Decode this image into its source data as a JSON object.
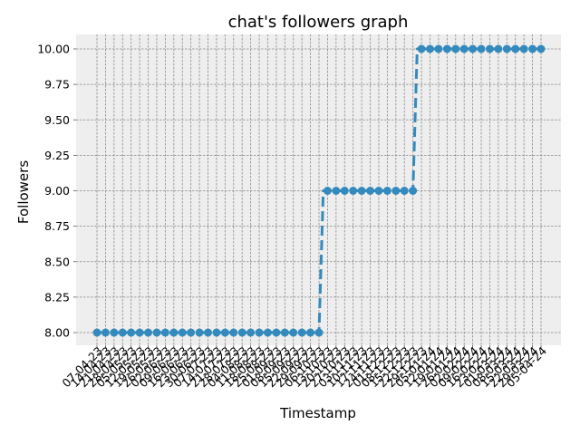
{
  "chart_data": {
    "type": "line",
    "title": "chat's followers graph",
    "xlabel": "Timestamp",
    "ylabel": "Followers",
    "ylim": [
      7.9,
      10.1
    ],
    "yticks": [
      "8.00",
      "8.25",
      "8.50",
      "8.75",
      "9.00",
      "9.25",
      "9.50",
      "9.75",
      "10.00"
    ],
    "ytick_values": [
      8.0,
      8.25,
      8.5,
      8.75,
      9.0,
      9.25,
      9.5,
      9.75,
      10.0
    ],
    "grid": true,
    "line_color": "#348ABD",
    "background": "#EEEEEE",
    "x": [
      "07-04-23",
      "10-04-23",
      "14-04-23",
      "17-04-23",
      "21-04-23",
      "24-04-23",
      "28-04-23",
      "01-05-23",
      "05-05-23",
      "08-05-23",
      "12-05-23",
      "15-05-23",
      "19-05-23",
      "22-05-23",
      "26-05-23",
      "29-05-23",
      "02-06-23",
      "05-06-23",
      "09-06-23",
      "12-06-23",
      "16-06-23",
      "19-06-23",
      "23-06-23",
      "26-06-23",
      "30-06-23",
      "03-07-23",
      "07-07-23",
      "10-07-23",
      "14-07-23",
      "17-07-23",
      "21-07-23",
      "24-07-23",
      "28-07-23",
      "31-07-23",
      "04-08-23",
      "07-08-23",
      "11-08-23",
      "14-08-23",
      "18-08-23",
      "21-08-23",
      "25-08-23",
      "28-08-23",
      "01-09-23",
      "04-09-23",
      "08-09-23",
      "11-09-23",
      "15-09-23",
      "18-09-23",
      "22-09-23",
      "25-09-23",
      "29-09-23",
      "02-10-23",
      "06-10-23",
      "09-10-23",
      "13-10-23",
      "16-10-23",
      "20-10-23",
      "23-10-23",
      "27-10-23",
      "30-10-23",
      "03-11-23",
      "06-11-23",
      "10-11-23",
      "13-11-23",
      "17-11-23",
      "20-11-23",
      "24-11-23",
      "27-11-23",
      "01-12-23",
      "04-12-23",
      "08-12-23",
      "11-12-23",
      "15-12-23",
      "18-12-23",
      "22-12-23",
      "25-12-23",
      "29-12-23",
      "01-01-24",
      "05-01-24",
      "08-01-24",
      "12-01-24",
      "15-01-24",
      "19-01-24",
      "22-01-24",
      "26-01-24",
      "29-01-24",
      "02-02-24",
      "05-02-24",
      "09-02-24",
      "12-02-24",
      "16-02-24",
      "19-02-24",
      "23-02-24",
      "26-02-24",
      "01-03-24",
      "04-03-24",
      "08-03-24",
      "11-03-24",
      "15-03-24",
      "18-03-24",
      "22-03-24",
      "25-03-24",
      "29-03-24",
      "01-04-24",
      "05-04-24"
    ],
    "series": [
      {
        "values": [
          8,
          8,
          8,
          8,
          8,
          8,
          8,
          8,
          8,
          8,
          8,
          8,
          8,
          8,
          8,
          8,
          8,
          8,
          8,
          8,
          8,
          8,
          8,
          8,
          8,
          8,
          8,
          8,
          8,
          8,
          8,
          8,
          8,
          8,
          8,
          8,
          8,
          8,
          8,
          8,
          8,
          8,
          8,
          8,
          8,
          8,
          8,
          8,
          8,
          8,
          8,
          8,
          8,
          9,
          9,
          9,
          9,
          9,
          9,
          9,
          9,
          9,
          9,
          9,
          9,
          9,
          9,
          9,
          9,
          9,
          9,
          9,
          9,
          9,
          9,
          10,
          10,
          10,
          10,
          10,
          10,
          10,
          10,
          10,
          10,
          10,
          10,
          10,
          10,
          10,
          10,
          10,
          10,
          10,
          10,
          10,
          10,
          10,
          10,
          10,
          10,
          10,
          10,
          10,
          10
        ]
      }
    ],
    "markers_at": [
      0,
      2,
      4,
      6,
      8,
      10,
      12,
      14,
      16,
      18,
      20,
      22,
      24,
      26,
      28,
      30,
      32,
      34,
      36,
      38,
      40,
      42,
      44,
      46,
      48,
      50,
      52,
      54,
      56,
      58,
      60,
      62,
      64,
      66,
      68,
      70,
      72,
      74,
      76,
      78,
      80,
      82,
      84,
      86,
      88,
      90,
      92,
      94,
      96,
      98,
      100,
      102,
      104
    ]
  }
}
